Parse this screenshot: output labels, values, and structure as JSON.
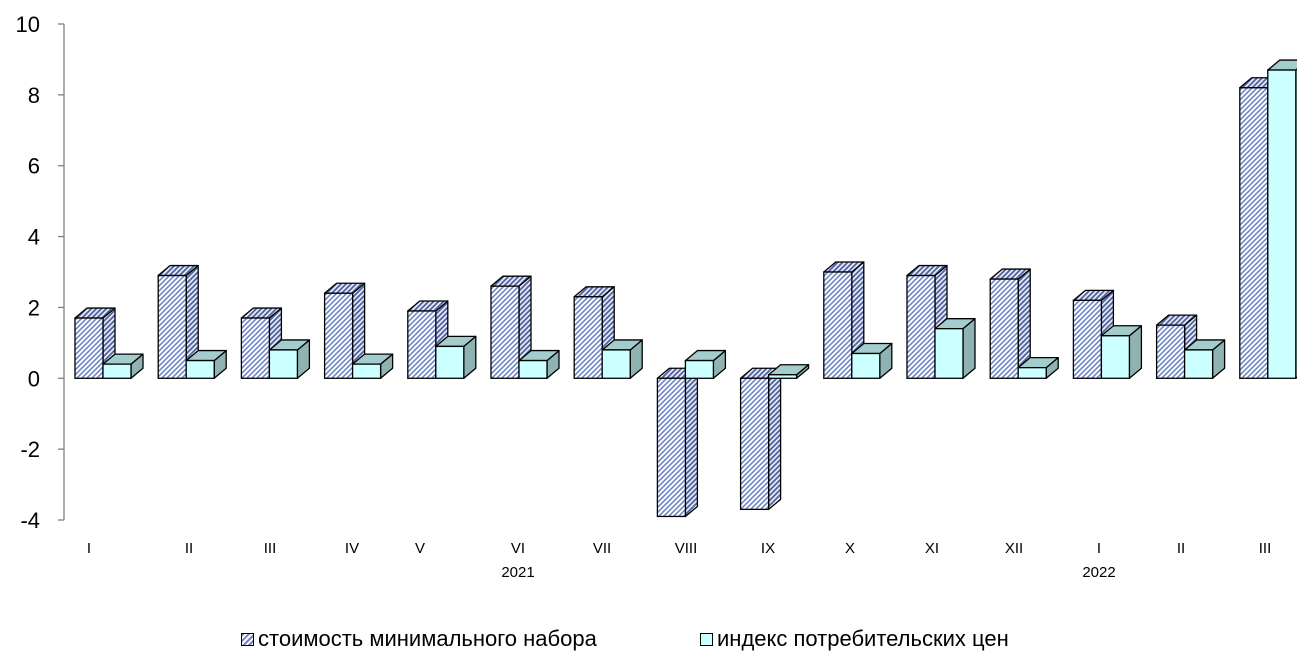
{
  "chart_data": {
    "type": "bar",
    "y_ticks": [
      "10",
      "8",
      "6",
      "4",
      "2",
      "0",
      "-2",
      "-4"
    ],
    "ylim": [
      -4,
      10
    ],
    "categories": [
      "I",
      "II",
      "III",
      "IV",
      "V",
      "VI",
      "VII",
      "VIII",
      "IX",
      "X",
      "XI",
      "XII",
      "I",
      "II",
      "III"
    ],
    "year_labels": [
      {
        "category_index": 5,
        "text": "2021"
      },
      {
        "category_index": 12,
        "text": "2022"
      }
    ],
    "series": [
      {
        "name": "стоимость минимального набора",
        "values": [
          1.7,
          2.9,
          1.7,
          2.4,
          1.9,
          2.6,
          2.3,
          -3.9,
          -3.7,
          3.0,
          2.9,
          2.8,
          2.2,
          1.5,
          8.2
        ]
      },
      {
        "name": "индекс потребительских цен",
        "values": [
          0.4,
          0.5,
          0.8,
          0.4,
          0.9,
          0.5,
          0.8,
          0.5,
          0.1,
          0.7,
          1.4,
          0.3,
          1.2,
          0.8,
          8.7
        ]
      }
    ],
    "grid": false,
    "legend_position": "bottom",
    "colors": {
      "series1_fill": "#ffffff",
      "series1_hatch": "#7b8fc8",
      "series2_front": "#ccffff",
      "series2_top": "#a3cccc",
      "series2_side": "#8fb3b3"
    }
  }
}
